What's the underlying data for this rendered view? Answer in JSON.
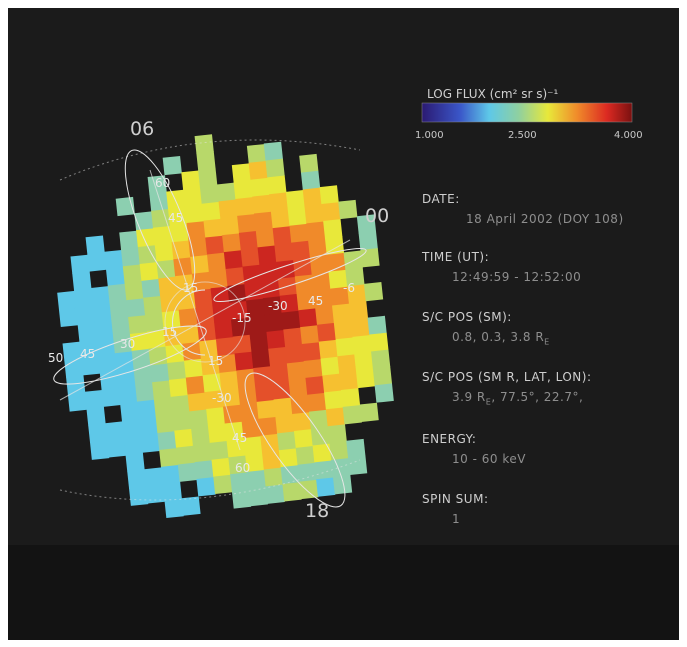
{
  "colorbar": {
    "title": "LOG FLUX (cm² sr s)⁻¹",
    "ticks": [
      "1.000",
      "2.500",
      "4.000"
    ]
  },
  "map": {
    "mlt_labels": [
      "06",
      "00",
      "18"
    ],
    "latitude_labels": [
      "60",
      "45",
      "15",
      "-15",
      "-30",
      "45",
      "-6",
      "15",
      "15",
      "-30",
      "45",
      "60",
      "50",
      "45",
      "30"
    ]
  },
  "info": [
    {
      "label": "DATE:",
      "value": "18 April 2002  (DOY  108)"
    },
    {
      "label": "TIME (UT):",
      "value": "12:49:59 - 12:52:00"
    },
    {
      "label": "S/C POS (SM):",
      "value": "0.8, 0.3, 3.8  R",
      "value_sub": "E"
    },
    {
      "label": "S/C POS (SM R, LAT, LON):",
      "value": "3.9 R",
      "value_sub": "E",
      "value_rest": ", 77.5°, 22.7°,"
    },
    {
      "label": "ENERGY:",
      "value": "10 - 60 keV"
    },
    {
      "label": "SPIN SUM:",
      "value": "1"
    }
  ]
}
